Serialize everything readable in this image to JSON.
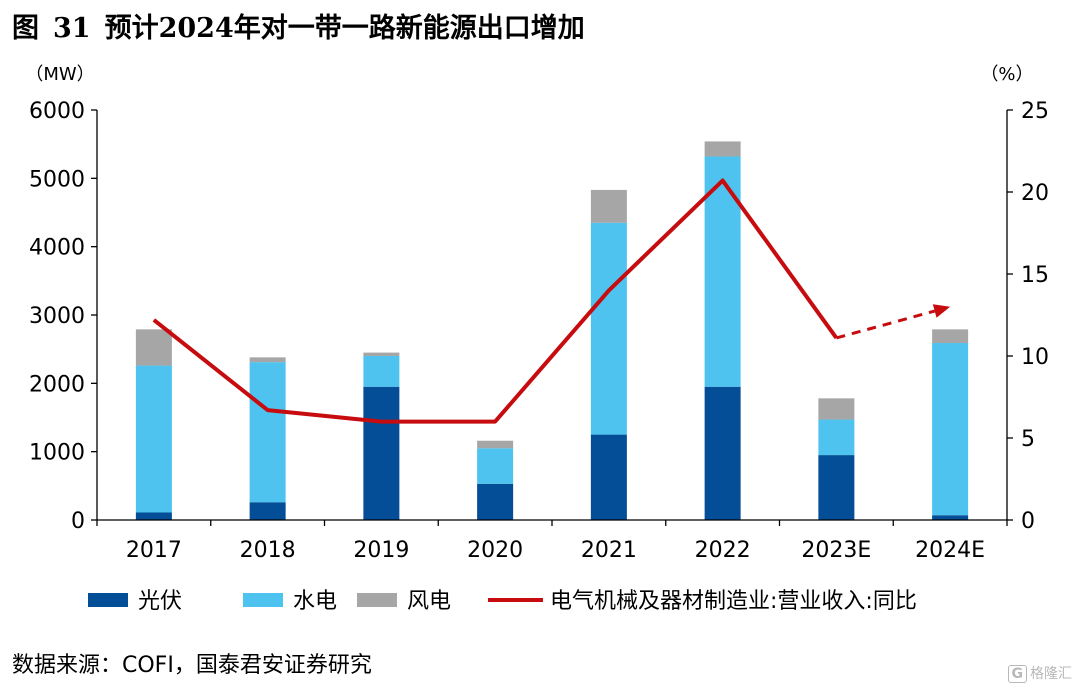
{
  "figure": {
    "label": "图",
    "number": "31",
    "title": "预计2024年对一带一路新能源出口增加"
  },
  "source": "数据来源：COFI，国泰君安证券研究",
  "watermark": "格隆汇",
  "watermark_logo": "G",
  "colors": {
    "solar": "#034e96",
    "hydro": "#4ec3ef",
    "wind": "#a6a6a6",
    "line": "#c60c0f"
  },
  "chart_data": {
    "type": "bar",
    "stacked": true,
    "categories": [
      "2017",
      "2018",
      "2019",
      "2020",
      "2021",
      "2022",
      "2023E",
      "2024E"
    ],
    "series": [
      {
        "name": "光伏",
        "type": "bar",
        "axis": "left",
        "values": [
          110,
          260,
          1950,
          530,
          1250,
          1950,
          950,
          70
        ]
      },
      {
        "name": "水电",
        "type": "bar",
        "axis": "left",
        "values": [
          2150,
          2050,
          450,
          520,
          3100,
          3370,
          520,
          2520
        ]
      },
      {
        "name": "风电",
        "type": "bar",
        "axis": "left",
        "values": [
          530,
          70,
          50,
          110,
          480,
          220,
          310,
          200
        ]
      },
      {
        "name": "电气机械及器材制造业:营业收入:同比",
        "type": "line",
        "axis": "right",
        "values": [
          12.2,
          6.7,
          6.0,
          6.0,
          14.0,
          20.7,
          11.1,
          13.0
        ],
        "dashed_from_index": 6
      }
    ],
    "y_left": {
      "unit_label": "（MW）",
      "min": 0,
      "max": 6000,
      "ticks": [
        0,
        1000,
        2000,
        3000,
        4000,
        5000,
        6000
      ]
    },
    "y_right": {
      "unit_label": "（%）",
      "min": 0,
      "max": 25,
      "ticks": [
        0,
        5,
        10,
        15,
        20,
        25
      ]
    },
    "grid": false,
    "legend_position": "bottom"
  }
}
